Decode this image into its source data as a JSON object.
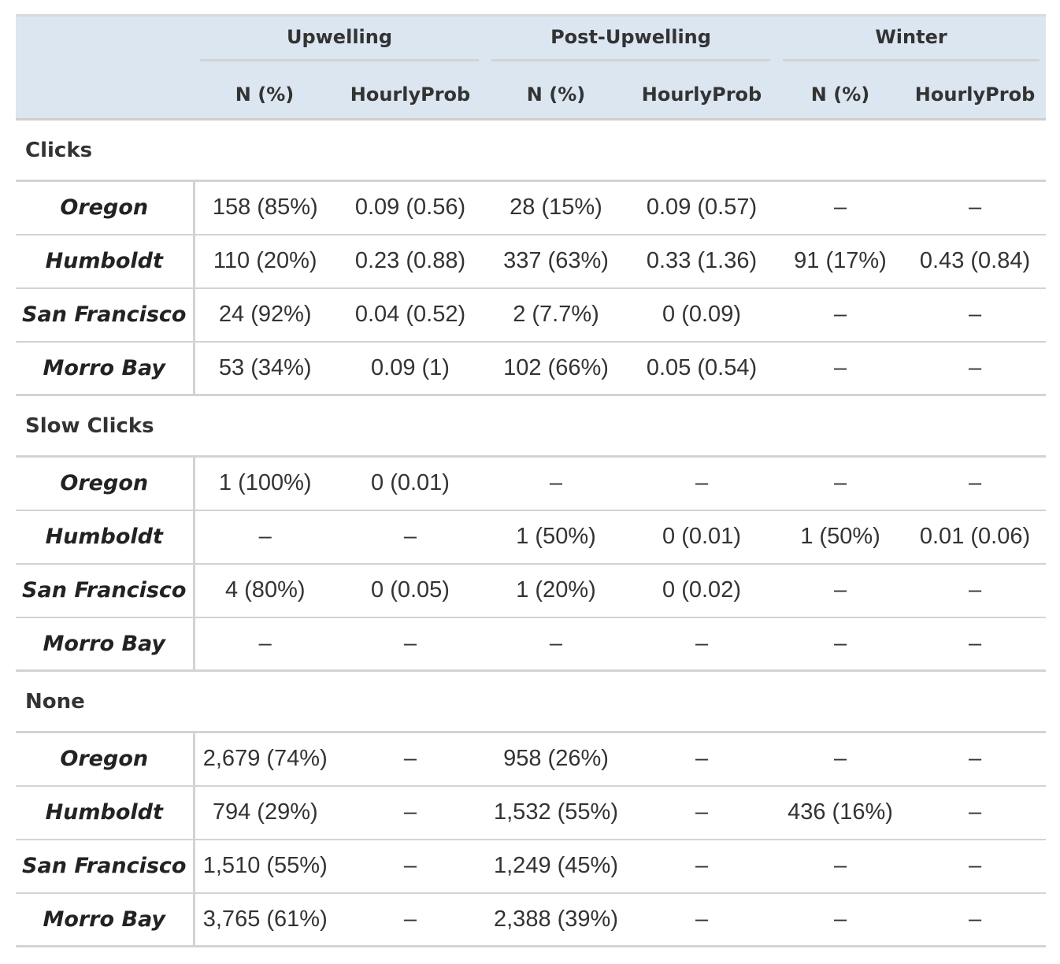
{
  "header": {
    "groups": [
      "Upwelling",
      "Post-Upwelling",
      "Winter"
    ],
    "sub": [
      "N (%)",
      "HourlyProb",
      "N (%)",
      "HourlyProb",
      "N (%)",
      "HourlyProb"
    ]
  },
  "sections": [
    {
      "label": "Clicks",
      "rows": [
        {
          "label": "Oregon",
          "cells": [
            "158 (85%)",
            "0.09 (0.56)",
            "28 (15%)",
            "0.09 (0.57)",
            "–",
            "–"
          ]
        },
        {
          "label": "Humboldt",
          "cells": [
            "110 (20%)",
            "0.23 (0.88)",
            "337 (63%)",
            "0.33 (1.36)",
            "91 (17%)",
            "0.43 (0.84)"
          ]
        },
        {
          "label": "San Francisco",
          "cells": [
            "24 (92%)",
            "0.04 (0.52)",
            "2 (7.7%)",
            "0 (0.09)",
            "–",
            "–"
          ]
        },
        {
          "label": "Morro Bay",
          "cells": [
            "53 (34%)",
            "0.09 (1)",
            "102 (66%)",
            "0.05 (0.54)",
            "–",
            "–"
          ]
        }
      ]
    },
    {
      "label": "Slow Clicks",
      "rows": [
        {
          "label": "Oregon",
          "cells": [
            "1 (100%)",
            "0 (0.01)",
            "–",
            "–",
            "–",
            "–"
          ]
        },
        {
          "label": "Humboldt",
          "cells": [
            "–",
            "–",
            "1 (50%)",
            "0 (0.01)",
            "1 (50%)",
            "0.01 (0.06)"
          ]
        },
        {
          "label": "San Francisco",
          "cells": [
            "4 (80%)",
            "0 (0.05)",
            "1 (20%)",
            "0 (0.02)",
            "–",
            "–"
          ]
        },
        {
          "label": "Morro Bay",
          "cells": [
            "–",
            "–",
            "–",
            "–",
            "–",
            "–"
          ]
        }
      ]
    },
    {
      "label": "None",
      "rows": [
        {
          "label": "Oregon",
          "cells": [
            "2,679 (74%)",
            "–",
            "958 (26%)",
            "–",
            "–",
            "–"
          ]
        },
        {
          "label": "Humboldt",
          "cells": [
            "794 (29%)",
            "–",
            "1,532 (55%)",
            "–",
            "436 (16%)",
            "–"
          ]
        },
        {
          "label": "San Francisco",
          "cells": [
            "1,510 (55%)",
            "–",
            "1,249 (45%)",
            "–",
            "–",
            "–"
          ]
        },
        {
          "label": "Morro Bay",
          "cells": [
            "3,765 (61%)",
            "–",
            "2,388 (39%)",
            "–",
            "–",
            "–"
          ]
        }
      ]
    }
  ]
}
